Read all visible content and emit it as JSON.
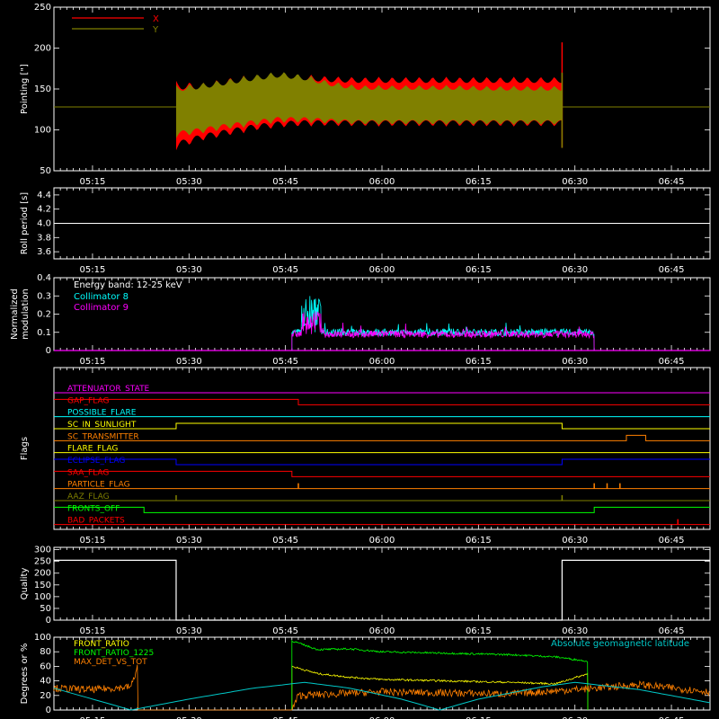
{
  "time_axis": {
    "range": [
      "05:09",
      "06:51"
    ],
    "ticks": [
      "05:15",
      "05:30",
      "05:45",
      "06:00",
      "06:15",
      "06:30",
      "06:45"
    ]
  },
  "colors": {
    "background": "#000000",
    "axes": "#ffffff",
    "pointing_x": "#ff0000",
    "pointing_y": "#808000",
    "collimator_8": "#00ffff",
    "collimator_9": "#ff00ff",
    "quality": "#ffffff",
    "front_ratio": "#ffff00",
    "front_ratio_1225": "#00ff00",
    "max_det_vs_tot": "#ff8000",
    "geomag_latitude": "#00c8c8"
  },
  "chart_data": [
    {
      "type": "area",
      "id": "pointing",
      "ylabel": "Pointing [\"]",
      "ylim": [
        50,
        250
      ],
      "yticks": [
        50,
        100,
        150,
        200,
        250
      ],
      "legend": "top-left",
      "series": [
        {
          "name": "X",
          "color": "#ff0000",
          "baseline": 128,
          "start": "05:28",
          "end": "06:28",
          "envelope_upper": [
            [
              "05:28",
              160
            ],
            [
              "05:32",
              158
            ],
            [
              "05:36",
              164
            ],
            [
              "05:40",
              168
            ],
            [
              "05:44",
              170
            ],
            [
              "05:48",
              168
            ],
            [
              "05:52",
              166
            ],
            [
              "05:56",
              165
            ],
            [
              "06:00",
              165
            ],
            [
              "06:04",
              165
            ],
            [
              "06:08",
              165
            ],
            [
              "06:12",
              165
            ],
            [
              "06:16",
              165
            ],
            [
              "06:20",
              165
            ],
            [
              "06:24",
              165
            ],
            [
              "06:28",
              165
            ]
          ],
          "envelope_lower": [
            [
              "05:28",
              75
            ],
            [
              "05:32",
              86
            ],
            [
              "05:36",
              92
            ],
            [
              "05:40",
              98
            ],
            [
              "05:44",
              102
            ],
            [
              "05:48",
              104
            ],
            [
              "05:52",
              104
            ],
            [
              "05:56",
              104
            ],
            [
              "06:00",
              104
            ],
            [
              "06:04",
              104
            ],
            [
              "06:08",
              104
            ],
            [
              "06:12",
              104
            ],
            [
              "06:16",
              104
            ],
            [
              "06:20",
              104
            ],
            [
              "06:24",
              104
            ],
            [
              "06:28",
              104
            ]
          ],
          "spike": {
            "time": "06:28",
            "low": 78,
            "high": 207
          }
        },
        {
          "name": "Y",
          "color": "#808000",
          "baseline": 128,
          "start": "05:28",
          "end": "06:28",
          "envelope_upper": [
            [
              "05:28",
              155
            ],
            [
              "05:32",
              158
            ],
            [
              "05:36",
              163
            ],
            [
              "05:40",
              168
            ],
            [
              "05:44",
              172
            ],
            [
              "05:48",
              168
            ],
            [
              "05:52",
              160
            ],
            [
              "05:56",
              155
            ],
            [
              "06:00",
              155
            ],
            [
              "06:04",
              155
            ],
            [
              "06:08",
              155
            ],
            [
              "06:12",
              155
            ],
            [
              "06:16",
              154
            ],
            [
              "06:20",
              154
            ],
            [
              "06:24",
              154
            ],
            [
              "06:28",
              154
            ]
          ],
          "envelope_lower": [
            [
              "05:28",
              90
            ],
            [
              "05:32",
              95
            ],
            [
              "05:36",
              100
            ],
            [
              "05:40",
              104
            ],
            [
              "05:44",
              108
            ],
            [
              "05:48",
              108
            ],
            [
              "05:52",
              107
            ],
            [
              "05:56",
              106
            ],
            [
              "06:00",
              106
            ],
            [
              "06:04",
              106
            ],
            [
              "06:08",
              106
            ],
            [
              "06:12",
              106
            ],
            [
              "06:16",
              106
            ],
            [
              "06:20",
              106
            ],
            [
              "06:24",
              106
            ],
            [
              "06:28",
              106
            ]
          ],
          "spike": {
            "time": "06:28",
            "low": 78,
            "high": 170
          }
        }
      ]
    },
    {
      "type": "line",
      "id": "roll",
      "ylabel": "Roll period [s]",
      "ylim": [
        3.5,
        4.5
      ],
      "yticks": [
        "3.6",
        "3.8",
        "4.0",
        "4.2",
        "4.4"
      ],
      "series": [
        {
          "name": "",
          "color": "#ffffff",
          "constant": 4.0
        }
      ]
    },
    {
      "type": "line",
      "id": "modulation",
      "ylabel": "Normalized modulation",
      "ylim": [
        0,
        0.4
      ],
      "yticks": [
        "0",
        "0.1",
        "0.2",
        "0.3",
        "0.4"
      ],
      "legend": "top-left",
      "annotation": "Energy band: 12-25 keV",
      "series": [
        {
          "name": "Collimator 8",
          "color": "#00ffff",
          "start": "05:46",
          "end": "06:33",
          "typical": 0.1,
          "peak": {
            "time": "05:49",
            "value": 0.3
          }
        },
        {
          "name": "Collimator 9",
          "color": "#ff00ff",
          "start": "05:46",
          "end": "06:33",
          "typical": 0.09,
          "peak": {
            "time": "05:49",
            "value": 0.22
          }
        }
      ]
    },
    {
      "type": "line",
      "id": "flags",
      "ylabel": "Flags",
      "flags": [
        {
          "name": "ATTENUATOR_STATE",
          "color": "#ff00ff",
          "segments": [
            [
              "05:09",
              "06:51",
              0
            ]
          ]
        },
        {
          "name": "GAP_FLAG",
          "color": "#ff0000",
          "segments": [
            [
              "05:09",
              "05:47",
              1
            ],
            [
              "05:47",
              "06:51",
              0
            ]
          ]
        },
        {
          "name": "POSSIBLE_FLARE",
          "color": "#00ffff",
          "segments": [
            [
              "05:09",
              "06:51",
              0
            ]
          ]
        },
        {
          "name": "SC_IN_SUNLIGHT",
          "color": "#ffff00",
          "segments": [
            [
              "05:09",
              "05:28",
              0
            ],
            [
              "05:28",
              "06:28",
              1
            ],
            [
              "06:28",
              "06:51",
              0
            ]
          ]
        },
        {
          "name": "SC_TRANSMITTER",
          "color": "#ff8000",
          "segments": [
            [
              "05:09",
              "06:38",
              0
            ],
            [
              "06:38",
              "06:41",
              1
            ],
            [
              "06:41",
              "06:51",
              0
            ]
          ]
        },
        {
          "name": "FLARE_FLAG",
          "color": "#ffff00",
          "segments": [
            [
              "05:09",
              "06:51",
              0
            ]
          ]
        },
        {
          "name": "ECLIPSE_FLAG",
          "color": "#0000ff",
          "segments": [
            [
              "05:09",
              "05:28",
              1
            ],
            [
              "05:28",
              "06:28",
              0
            ],
            [
              "06:28",
              "06:51",
              1
            ]
          ]
        },
        {
          "name": "SAA_FLAG",
          "color": "#ff0000",
          "segments": [
            [
              "05:09",
              "05:46",
              1
            ],
            [
              "05:46",
              "06:51",
              0
            ]
          ]
        },
        {
          "name": "PARTICLE_FLAG",
          "color": "#ff8000",
          "segments": [
            [
              "05:09",
              "06:51",
              0
            ]
          ],
          "pulses": [
            "05:47",
            "06:33",
            "06:35",
            "06:37"
          ]
        },
        {
          "name": "AAZ_FLAG",
          "color": "#808000",
          "segments": [
            [
              "05:09",
              "06:51",
              0
            ]
          ],
          "pulses": [
            "05:28",
            "06:28"
          ]
        },
        {
          "name": "FRONTS_OFF",
          "color": "#00ff00",
          "segments": [
            [
              "05:09",
              "05:23",
              1
            ],
            [
              "05:23",
              "06:33",
              0
            ],
            [
              "06:33",
              "06:51",
              1
            ]
          ]
        },
        {
          "name": "BAD_PACKETS",
          "color": "#ff0000",
          "segments": [
            [
              "05:09",
              "06:51",
              0
            ]
          ],
          "pulses": [
            "06:46"
          ]
        }
      ]
    },
    {
      "type": "line",
      "id": "quality",
      "ylabel": "Quality",
      "ylim": [
        0,
        310
      ],
      "yticks": [
        0,
        50,
        100,
        150,
        200,
        250,
        300
      ],
      "series": [
        {
          "name": "",
          "color": "#ffffff",
          "points": [
            [
              "05:09",
              255
            ],
            [
              "05:28",
              255
            ],
            [
              "05:28",
              0
            ],
            [
              "06:28",
              0
            ],
            [
              "06:28",
              255
            ],
            [
              "06:51",
              255
            ]
          ]
        }
      ]
    },
    {
      "type": "line",
      "id": "ratios",
      "ylabel": "Degrees or %",
      "ylim": [
        0,
        100
      ],
      "yticks": [
        0,
        20,
        40,
        60,
        80,
        100
      ],
      "legend": "top-left",
      "series": [
        {
          "name": "FRONT_RATIO",
          "color": "#ffff00",
          "start": "05:46",
          "end": "06:33",
          "points": [
            [
              "05:46",
              60
            ],
            [
              "05:50",
              50
            ],
            [
              "05:55",
              45
            ],
            [
              "06:00",
              42
            ],
            [
              "06:10",
              40
            ],
            [
              "06:20",
              38
            ],
            [
              "06:27",
              36
            ],
            [
              "06:32",
              50
            ]
          ]
        },
        {
          "name": "FRONT_RATIO_1225",
          "color": "#00ff00",
          "start": "05:46",
          "end": "06:33",
          "points": [
            [
              "05:46",
              95
            ],
            [
              "05:50",
              83
            ],
            [
              "05:55",
              84
            ],
            [
              "06:00",
              80
            ],
            [
              "06:10",
              78
            ],
            [
              "06:20",
              76
            ],
            [
              "06:27",
              73
            ],
            [
              "06:32",
              67
            ]
          ]
        },
        {
          "name": "MAX_DET_VS_TOT",
          "color": "#ff8000",
          "points": [
            [
              "05:09",
              30
            ],
            [
              "05:15",
              28
            ],
            [
              "05:21",
              32
            ],
            [
              "05:22",
              60
            ],
            [
              "05:22",
              0
            ],
            [
              "05:46",
              0
            ],
            [
              "05:47",
              20
            ],
            [
              "06:00",
              25
            ],
            [
              "06:20",
              22
            ],
            [
              "06:33",
              30
            ],
            [
              "06:40",
              35
            ],
            [
              "06:51",
              25
            ]
          ]
        },
        {
          "name": "Absolute geomagnetic latitude",
          "color": "#00c8c8",
          "points": [
            [
              "05:09",
              30
            ],
            [
              "05:15",
              15
            ],
            [
              "05:21",
              0
            ],
            [
              "05:30",
              15
            ],
            [
              "05:40",
              30
            ],
            [
              "05:48",
              38
            ],
            [
              "05:55",
              30
            ],
            [
              "06:03",
              15
            ],
            [
              "06:09",
              0
            ],
            [
              "06:15",
              15
            ],
            [
              "06:25",
              32
            ],
            [
              "06:30",
              38
            ],
            [
              "06:40",
              28
            ],
            [
              "06:51",
              10
            ]
          ]
        }
      ]
    }
  ]
}
